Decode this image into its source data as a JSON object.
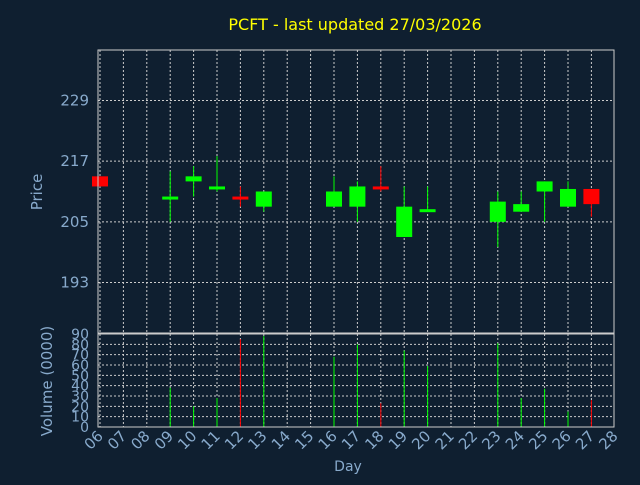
{
  "title": "PCFT - last updated 27/03/2026",
  "colors": {
    "background": "#0f1f30",
    "title": "#ffff00",
    "axis_text": "#88aacc",
    "grid": "#cccccc",
    "up": "#00ff00",
    "down": "#ff0000"
  },
  "chart_data": [
    {
      "type": "candlestick",
      "ylabel": "Price",
      "yticks": [
        193,
        205,
        217,
        229
      ],
      "ylim": [
        183,
        239
      ],
      "grid": true,
      "x": [
        "06",
        "07",
        "08",
        "09",
        "10",
        "11",
        "12",
        "13",
        "14",
        "15",
        "16",
        "17",
        "18",
        "19",
        "20",
        "21",
        "22",
        "23",
        "24",
        "25",
        "26",
        "27",
        "28"
      ],
      "candles": [
        {
          "day": "06",
          "open": 214,
          "high": 214,
          "low": 212,
          "close": 212
        },
        {
          "day": "09",
          "open": 209.5,
          "high": 215,
          "low": 205,
          "close": 210
        },
        {
          "day": "10",
          "open": 213,
          "high": 216,
          "low": 210,
          "close": 214
        },
        {
          "day": "11",
          "open": 211.5,
          "high": 218,
          "low": 211,
          "close": 212
        },
        {
          "day": "12",
          "open": 210,
          "high": 212,
          "low": 208,
          "close": 209.5
        },
        {
          "day": "13",
          "open": 208,
          "high": 211,
          "low": 207,
          "close": 211
        },
        {
          "day": "16",
          "open": 208,
          "high": 214,
          "low": 208,
          "close": 211
        },
        {
          "day": "17",
          "open": 208,
          "high": 213,
          "low": 205,
          "close": 212
        },
        {
          "day": "18",
          "open": 212,
          "high": 216,
          "low": 211,
          "close": 211.5
        },
        {
          "day": "19",
          "open": 202,
          "high": 212,
          "low": 202,
          "close": 208
        },
        {
          "day": "20",
          "open": 207,
          "high": 212,
          "low": 207,
          "close": 207.5
        },
        {
          "day": "23",
          "open": 205,
          "high": 211,
          "low": 200,
          "close": 209
        },
        {
          "day": "24",
          "open": 207,
          "high": 211,
          "low": 207,
          "close": 208.5
        },
        {
          "day": "25",
          "open": 211,
          "high": 213,
          "low": 205,
          "close": 213
        },
        {
          "day": "26",
          "open": 208,
          "high": 213,
          "low": 208,
          "close": 211.5
        },
        {
          "day": "27",
          "open": 211.5,
          "high": 211.5,
          "low": 206,
          "close": 208.5
        }
      ]
    },
    {
      "type": "bar",
      "ylabel": "Volume (0000)",
      "xlabel": "Day",
      "yticks": [
        0,
        10,
        20,
        30,
        40,
        50,
        60,
        70,
        80,
        90
      ],
      "ylim": [
        0,
        90
      ],
      "grid": true,
      "x": [
        "06",
        "07",
        "08",
        "09",
        "10",
        "11",
        "12",
        "13",
        "14",
        "15",
        "16",
        "17",
        "18",
        "19",
        "20",
        "21",
        "22",
        "23",
        "24",
        "25",
        "26",
        "27",
        "28"
      ],
      "bars": [
        {
          "day": "06",
          "value": 0,
          "direction": "down"
        },
        {
          "day": "09",
          "value": 38,
          "direction": "up"
        },
        {
          "day": "10",
          "value": 20,
          "direction": "up"
        },
        {
          "day": "11",
          "value": 28,
          "direction": "up"
        },
        {
          "day": "12",
          "value": 85,
          "direction": "down"
        },
        {
          "day": "13",
          "value": 88,
          "direction": "up"
        },
        {
          "day": "16",
          "value": 68,
          "direction": "up"
        },
        {
          "day": "17",
          "value": 80,
          "direction": "up"
        },
        {
          "day": "18",
          "value": 23,
          "direction": "down"
        },
        {
          "day": "19",
          "value": 74,
          "direction": "up"
        },
        {
          "day": "20",
          "value": 59,
          "direction": "up"
        },
        {
          "day": "23",
          "value": 81,
          "direction": "up"
        },
        {
          "day": "24",
          "value": 28,
          "direction": "up"
        },
        {
          "day": "25",
          "value": 37,
          "direction": "up"
        },
        {
          "day": "26",
          "value": 15,
          "direction": "up"
        },
        {
          "day": "27",
          "value": 26,
          "direction": "down"
        }
      ]
    }
  ]
}
